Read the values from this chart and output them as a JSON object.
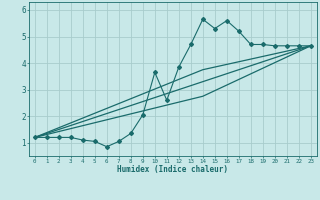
{
  "title": "",
  "xlabel": "Humidex (Indice chaleur)",
  "bg_color": "#c8e8e8",
  "line_color": "#1a6b6b",
  "grid_color": "#a8cccc",
  "xlim": [
    -0.5,
    23.5
  ],
  "ylim": [
    0.5,
    6.3
  ],
  "yticks": [
    1,
    2,
    3,
    4,
    5,
    6
  ],
  "xticks": [
    0,
    1,
    2,
    3,
    4,
    5,
    6,
    7,
    8,
    9,
    10,
    11,
    12,
    13,
    14,
    15,
    16,
    17,
    18,
    19,
    20,
    21,
    22,
    23
  ],
  "line1_x": [
    0,
    1,
    2,
    3,
    4,
    5,
    6,
    7,
    8,
    9,
    10,
    11,
    12,
    13,
    14,
    15,
    16,
    17,
    18,
    19,
    20,
    21,
    22,
    23
  ],
  "line1_y": [
    1.2,
    1.2,
    1.2,
    1.2,
    1.1,
    1.05,
    0.85,
    1.05,
    1.35,
    2.05,
    3.65,
    2.6,
    3.85,
    4.7,
    5.65,
    5.3,
    5.6,
    5.2,
    4.7,
    4.7,
    4.65,
    4.65,
    4.65,
    4.65
  ],
  "line2_x": [
    0,
    23
  ],
  "line2_y": [
    1.2,
    4.65
  ],
  "line3_x": [
    0,
    14,
    23
  ],
  "line3_y": [
    1.2,
    3.75,
    4.65
  ],
  "line4_x": [
    0,
    14,
    23
  ],
  "line4_y": [
    1.2,
    2.75,
    4.65
  ]
}
